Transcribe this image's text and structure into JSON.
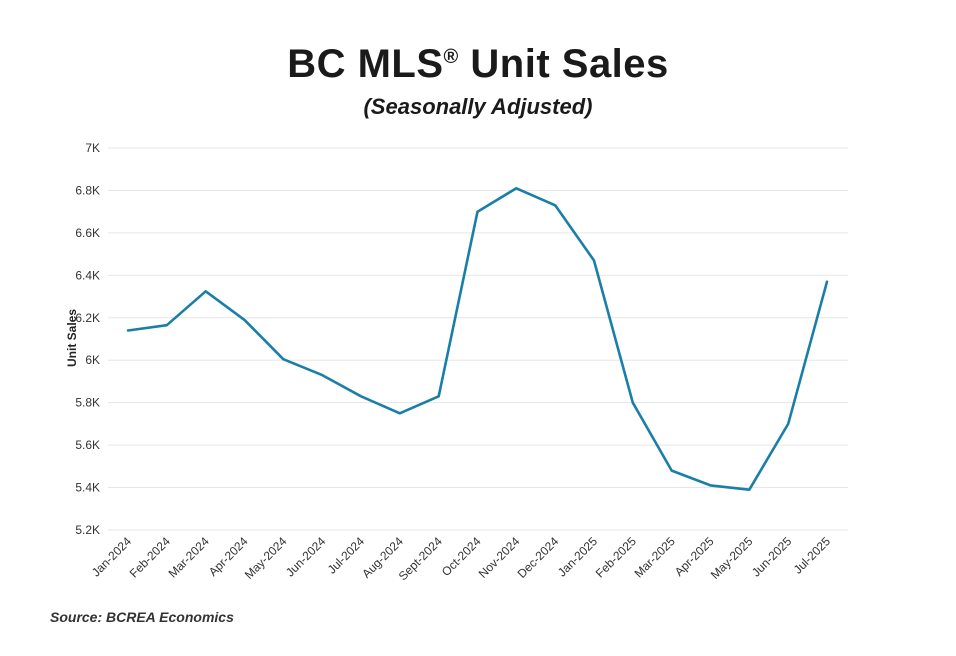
{
  "chart_data": {
    "type": "line",
    "title": "BC MLS",
    "title_mark": "®",
    "title_suffix": "Unit Sales",
    "subtitle": "(Seasonally Adjusted)",
    "xlabel": "",
    "ylabel": "Unit Sales",
    "ylim": [
      5200,
      7000
    ],
    "yticks": [
      {
        "value": 5200,
        "label": "5.2K"
      },
      {
        "value": 5400,
        "label": "5.4K"
      },
      {
        "value": 5600,
        "label": "5.6K"
      },
      {
        "value": 5800,
        "label": "5.8K"
      },
      {
        "value": 6000,
        "label": "6K"
      },
      {
        "value": 6200,
        "label": "6.2K"
      },
      {
        "value": 6400,
        "label": "6.4K"
      },
      {
        "value": 6600,
        "label": "6.6K"
      },
      {
        "value": 6800,
        "label": "6.8K"
      },
      {
        "value": 7000,
        "label": "7K"
      }
    ],
    "grid": true,
    "categories": [
      "Jan-2024",
      "Feb-2024",
      "Mar-2024",
      "Apr-2024",
      "May-2024",
      "Jun-2024",
      "Jul-2024",
      "Aug-2024",
      "Sept-2024",
      "Oct-2024",
      "Nov-2024",
      "Dec-2024",
      "Jan-2025",
      "Feb-2025",
      "Mar-2025",
      "Apr-2025",
      "May-2025",
      "Jun-2025",
      "Jul-2025"
    ],
    "series": [
      {
        "name": "Unit Sales",
        "color": "#1a7fa8",
        "values": [
          6140,
          6165,
          6325,
          6190,
          6005,
          5930,
          5830,
          5750,
          5830,
          6700,
          6810,
          6730,
          6470,
          5800,
          5480,
          5410,
          5390,
          5700,
          6370
        ]
      }
    ]
  },
  "source": "Source: BCREA Economics"
}
